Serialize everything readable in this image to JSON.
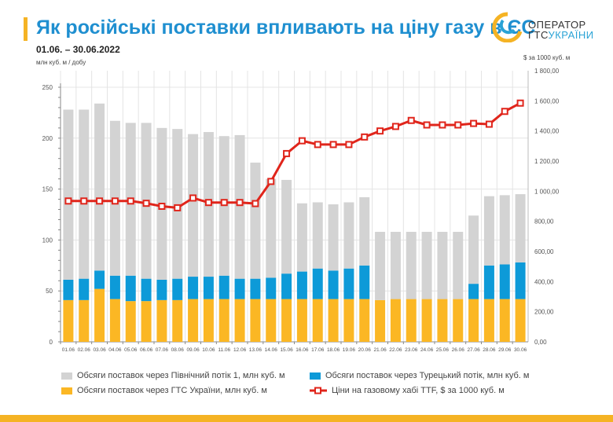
{
  "header": {
    "title": "Як російські поставки впливають на ціну газу в ЄС",
    "period": "01.06. – 30.06.2022",
    "left_unit": "млн куб. м / добу",
    "right_unit": "$ за 1000 куб. м"
  },
  "logo": {
    "line1": "ОПЕРАТОР",
    "line2a": "ГТС",
    "line2b": "УКРАЇНИ"
  },
  "colors": {
    "nord": "#d3d3d3",
    "turk": "#0d9ad8",
    "gts": "#fbb724",
    "price": "#e0251b",
    "title": "#1f8fd0"
  },
  "chart_data": {
    "type": "bar",
    "stacked": true,
    "categories": [
      "01.06",
      "02.06",
      "03.06",
      "04.06",
      "05.06",
      "06.06",
      "07.06",
      "08.06",
      "09.06",
      "10.06",
      "11.06",
      "12.06",
      "13.06",
      "14.06",
      "15.06",
      "16.06",
      "17.06",
      "18.06",
      "19.06",
      "20.06",
      "21.06",
      "22.06",
      "23.06",
      "24.06",
      "25.06",
      "26.06",
      "27.06",
      "28.06",
      "29.06",
      "30.06"
    ],
    "series": [
      {
        "name": "Обсяги поставок через ГТС України, млн куб. м",
        "axis": "left",
        "values": [
          41,
          41,
          52,
          42,
          40,
          40,
          41,
          41,
          42,
          42,
          42,
          42,
          42,
          42,
          42,
          42,
          42,
          42,
          42,
          42,
          41,
          42,
          42,
          42,
          42,
          42,
          42,
          42,
          42,
          42
        ]
      },
      {
        "name": "Обсяги поставок через Турецький потік, млн куб. м",
        "axis": "left",
        "values": [
          20,
          21,
          18,
          23,
          25,
          22,
          20,
          21,
          22,
          22,
          23,
          20,
          20,
          21,
          25,
          27,
          30,
          28,
          30,
          33,
          0,
          0,
          0,
          0,
          0,
          0,
          15,
          33,
          34,
          36
        ]
      },
      {
        "name": "Обсяги поставок через Північний потік 1, млн куб. м",
        "axis": "left",
        "values": [
          167,
          166,
          164,
          152,
          150,
          153,
          149,
          147,
          140,
          142,
          137,
          141,
          114,
          97,
          92,
          67,
          65,
          65,
          65,
          67,
          67,
          66,
          66,
          66,
          66,
          66,
          67,
          68,
          68,
          67
        ]
      },
      {
        "name": "Ціни на газовому хабі TTF, $ за 1000 куб. м",
        "type": "line",
        "axis": "right",
        "values": [
          935,
          935,
          935,
          935,
          935,
          920,
          900,
          890,
          955,
          925,
          925,
          925,
          918,
          1065,
          1250,
          1335,
          1310,
          1310,
          1310,
          1360,
          1400,
          1430,
          1470,
          1440,
          1440,
          1440,
          1450,
          1445,
          1530,
          1585
        ]
      }
    ],
    "left_axis": {
      "ylim": [
        0,
        250
      ],
      "ticks": [
        "0",
        "50",
        "100",
        "150",
        "200",
        "250"
      ]
    },
    "right_axis": {
      "ylim": [
        0,
        1800
      ],
      "ticks": [
        "0,00",
        "200,00",
        "400,00",
        "600,00",
        "800,00",
        "1 000,00",
        "1 200,00",
        "1 400,00",
        "1 600,00",
        "1 800,00"
      ]
    },
    "legend_position": "bottom"
  }
}
